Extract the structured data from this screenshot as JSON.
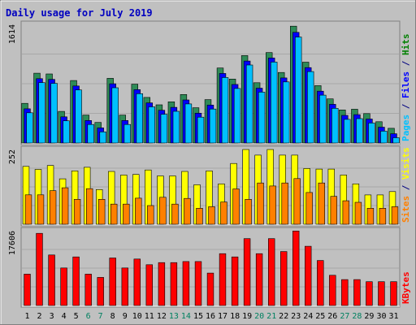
{
  "chart_data": {
    "type": "bar",
    "title": "Daily usage for July 2019",
    "categories": [
      "1",
      "2",
      "3",
      "4",
      "5",
      "6",
      "7",
      "8",
      "9",
      "10",
      "11",
      "12",
      "13",
      "14",
      "15",
      "16",
      "17",
      "18",
      "19",
      "20",
      "21",
      "22",
      "23",
      "24",
      "25",
      "26",
      "27",
      "28",
      "29",
      "30",
      "31"
    ],
    "weekend_days": [
      "6",
      "7",
      "13",
      "14",
      "20",
      "21",
      "27",
      "28"
    ],
    "panels": [
      {
        "name": "hits-files-pages",
        "max_label": "1614",
        "ymax": 1614,
        "right_labels": [
          {
            "text": "Pages",
            "color": "#00c0ff"
          },
          {
            "text": " / ",
            "color": "#000080"
          },
          {
            "text": "Files",
            "color": "#0000ff"
          },
          {
            "text": " / ",
            "color": "#000080"
          },
          {
            "text": "Hits",
            "color": "#008000"
          }
        ],
        "series": [
          {
            "name": "Hits",
            "color": "#2e8b57",
            "values": [
              540,
              950,
              940,
              430,
              850,
              380,
              280,
              880,
              380,
              800,
              620,
              520,
              560,
              660,
              480,
              590,
              1020,
              870,
              1190,
              820,
              1230,
              960,
              1590,
              1100,
              780,
              600,
              450,
              460,
              400,
              290,
              200
            ]
          },
          {
            "name": "Files",
            "color": "#0000ff",
            "values": [
              510,
              920,
              910,
              400,
              820,
              350,
              250,
              850,
              350,
              770,
              590,
              490,
              530,
              630,
              450,
              560,
              990,
              840,
              1160,
              790,
              1200,
              930,
              1550,
              1070,
              750,
              570,
              420,
              430,
              370,
              260,
              170
            ]
          },
          {
            "name": "Pages",
            "color": "#00c0ff",
            "values": [
              500,
              910,
              900,
              390,
              810,
              340,
              240,
              840,
              340,
              760,
              580,
              480,
              520,
              620,
              440,
              550,
              980,
              830,
              1150,
              780,
              1190,
              920,
              1530,
              1060,
              740,
              560,
              410,
              420,
              360,
              250,
              160
            ]
          }
        ]
      },
      {
        "name": "visits-sites",
        "max_label": "252",
        "ymax": 252,
        "right_labels": [
          {
            "text": "Sites",
            "color": "#ff8000"
          },
          {
            "text": " / ",
            "color": "#000080"
          },
          {
            "text": "Visits",
            "color": "#ffff00"
          }
        ],
        "series": [
          {
            "name": "Visits",
            "color": "#ffff00",
            "values": [
              195,
              185,
              198,
              153,
              180,
              192,
              117,
              178,
              166,
              168,
              183,
              163,
              163,
              178,
              133,
              180,
              136,
              205,
              252,
              233,
              252,
              233,
              233,
              188,
              186,
              186,
              166,
              136,
              99,
              99,
              110
            ]
          },
          {
            "name": "Sites",
            "color": "#ff8000",
            "values": [
              110,
              110,
              124,
              134,
              95,
              131,
              95,
              79,
              79,
              99,
              74,
              102,
              79,
              98,
              65,
              70,
              86,
              130,
              95,
              150,
              140,
              150,
              165,
              118,
              150,
              105,
              90,
              85,
              65,
              65,
              70
            ]
          }
        ]
      },
      {
        "name": "kbytes",
        "max_label": "17606",
        "ymax": 17606,
        "right_labels": [
          {
            "text": "KBytes",
            "color": "#ff0000"
          }
        ],
        "series": [
          {
            "name": "KBytes",
            "color": "#ff0000",
            "values": [
              7380,
              17000,
              11900,
              8840,
              11450,
              7380,
              6620,
              11200,
              8840,
              10950,
              9600,
              10100,
              10100,
              10350,
              10350,
              7630,
              12200,
              11450,
              15750,
              12200,
              15750,
              12700,
              17550,
              13950,
              10600,
              7120,
              6100,
              6100,
              5600,
              5600,
              5600
            ]
          }
        ]
      }
    ]
  }
}
